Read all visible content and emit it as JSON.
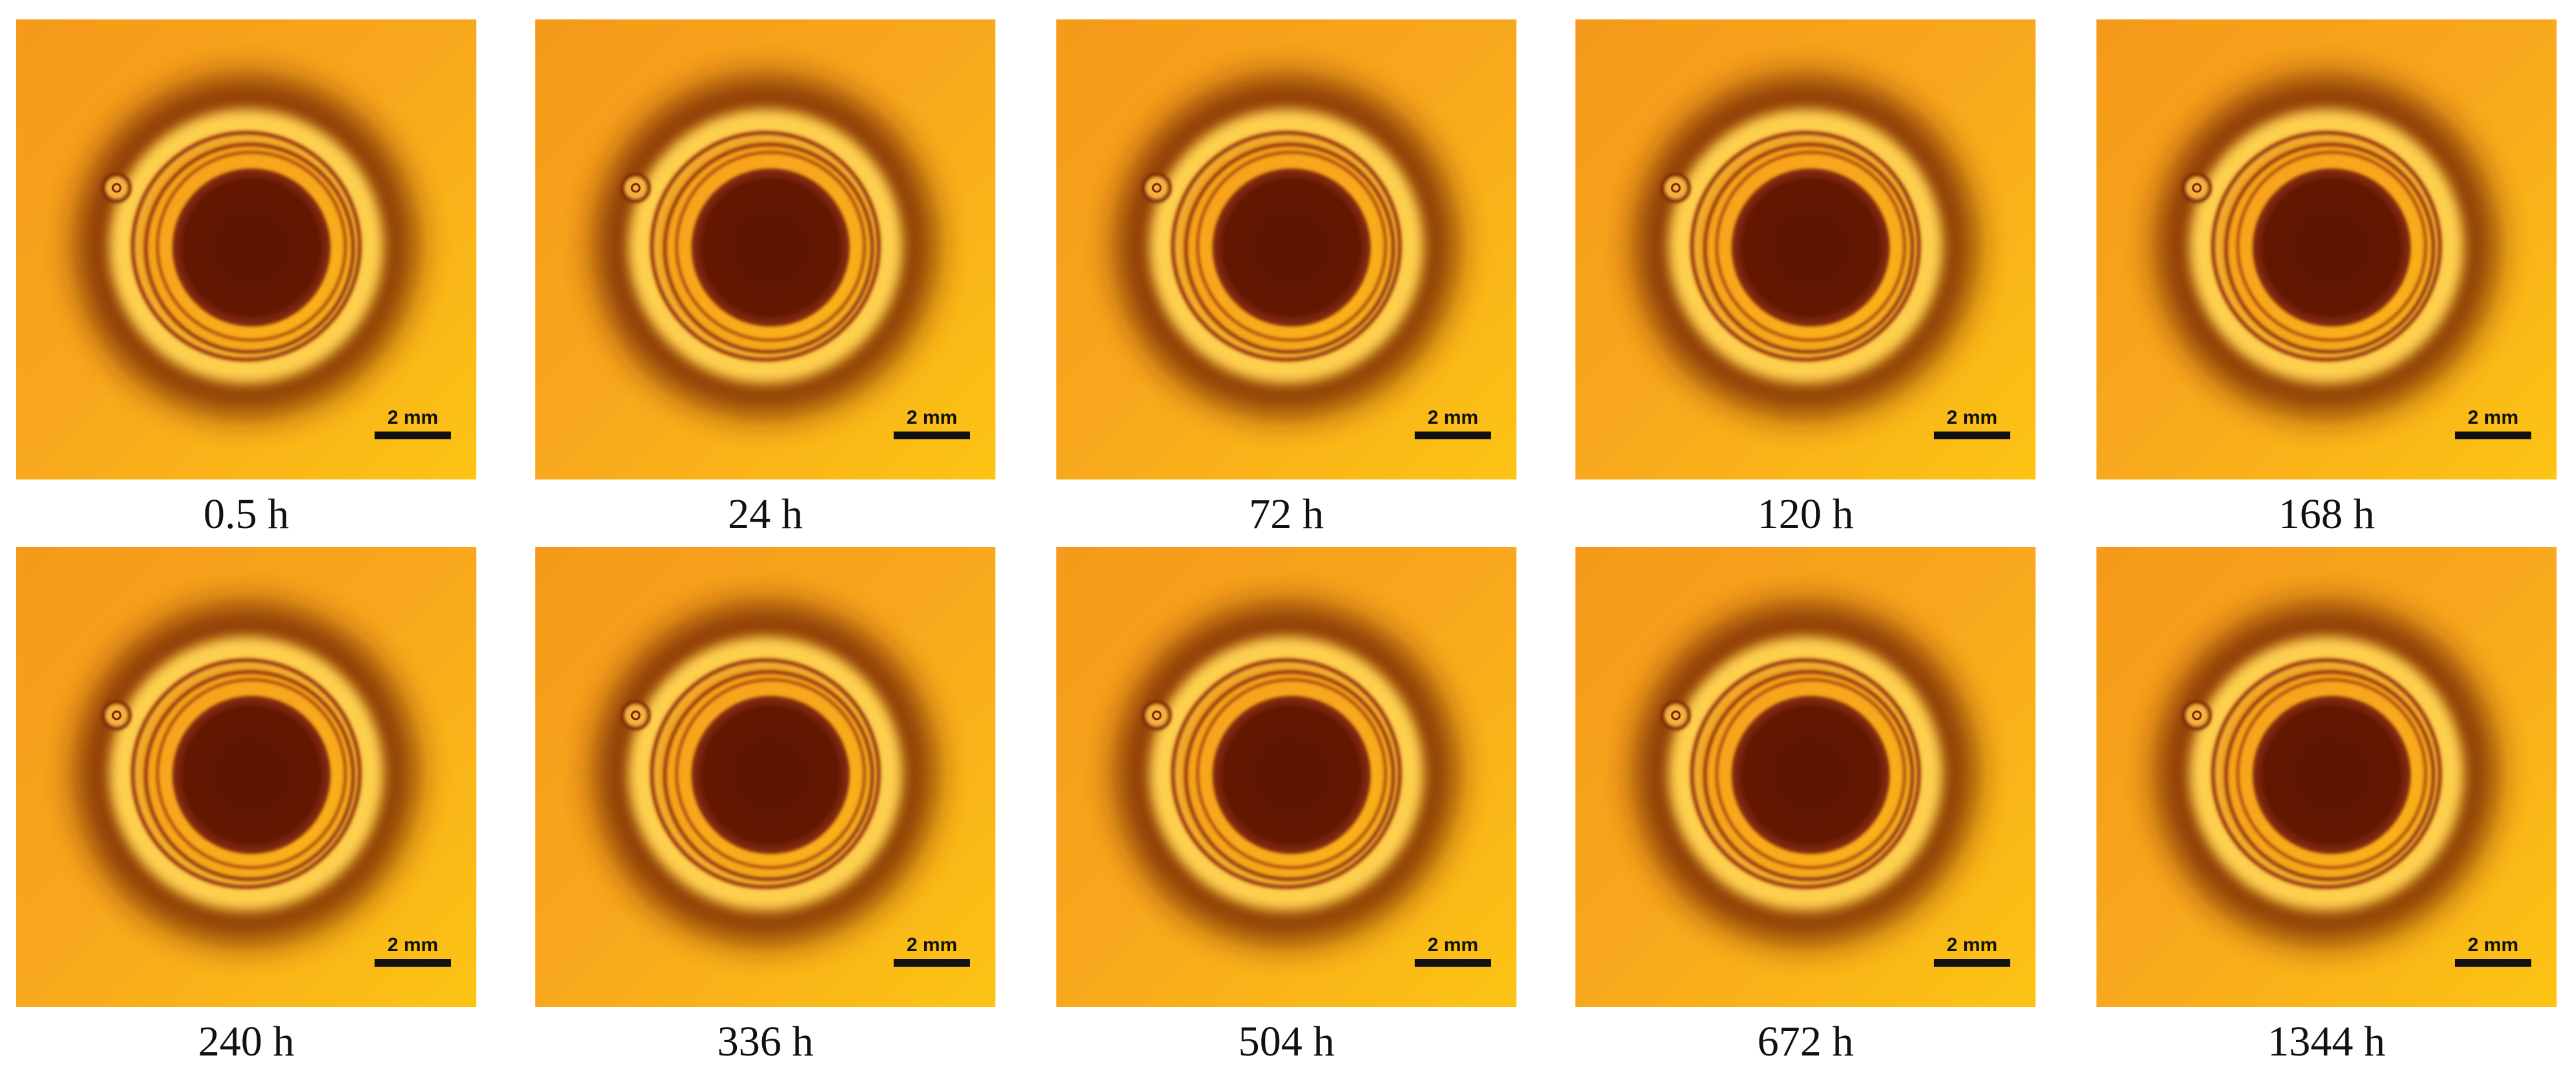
{
  "panels": [
    {
      "caption": "0.5 h",
      "scale_bar": "2 mm"
    },
    {
      "caption": "24 h",
      "scale_bar": "2 mm"
    },
    {
      "caption": "72 h",
      "scale_bar": "2 mm"
    },
    {
      "caption": "120 h",
      "scale_bar": "2 mm"
    },
    {
      "caption": "168 h",
      "scale_bar": "2 mm"
    },
    {
      "caption": "240 h",
      "scale_bar": "2 mm"
    },
    {
      "caption": "336 h",
      "scale_bar": "2 mm"
    },
    {
      "caption": "504 h",
      "scale_bar": "2 mm"
    },
    {
      "caption": "672 h",
      "scale_bar": "2 mm"
    },
    {
      "caption": "1344 h",
      "scale_bar": "2 mm"
    }
  ]
}
